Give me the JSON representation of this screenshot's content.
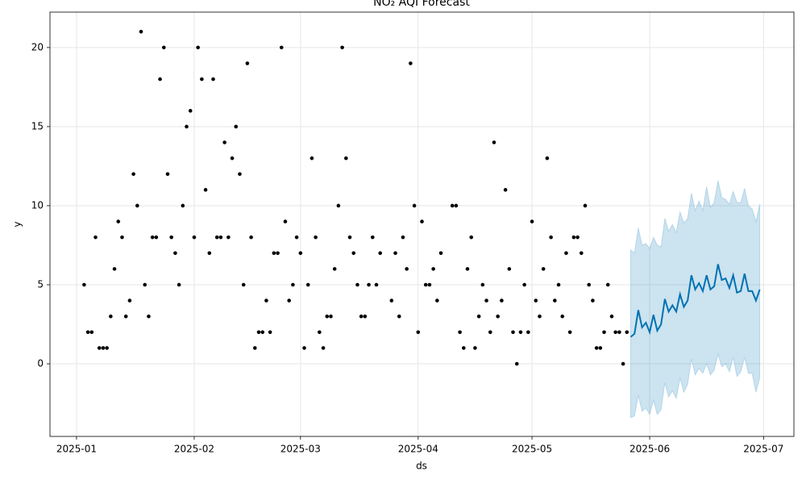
{
  "chart_data": {
    "type": "forecast",
    "title": "NO₂ AQI Forecast",
    "x_label": "ds",
    "y_label": "y",
    "xlim": [
      -7,
      189
    ],
    "ylim": [
      -4.59,
      22.24
    ],
    "xticks": [
      {
        "value": 0,
        "label": "2025-01"
      },
      {
        "value": 31,
        "label": "2025-02"
      },
      {
        "value": 59,
        "label": "2025-03"
      },
      {
        "value": 90,
        "label": "2025-04"
      },
      {
        "value": 120,
        "label": "2025-05"
      },
      {
        "value": 151,
        "label": "2025-06"
      },
      {
        "value": 181,
        "label": "2025-07"
      }
    ],
    "yticks": [
      0,
      5,
      10,
      15,
      20
    ],
    "grid": true,
    "observed": {
      "color": "#000000",
      "x": [
        2,
        3,
        4,
        5,
        6,
        7,
        8,
        9,
        10,
        11,
        12,
        13,
        14,
        15,
        16,
        17,
        18,
        19,
        20,
        21,
        22,
        23,
        24,
        25,
        26,
        27,
        28,
        29,
        30,
        31,
        32,
        33,
        34,
        35,
        36,
        37,
        38,
        39,
        40,
        41,
        42,
        43,
        44,
        45,
        46,
        47,
        48,
        49,
        50,
        51,
        52,
        53,
        54,
        55,
        56,
        57,
        58,
        59,
        60,
        61,
        62,
        63,
        64,
        65,
        66,
        67,
        68,
        69,
        70,
        71,
        72,
        73,
        74,
        75,
        76,
        77,
        78,
        79,
        80,
        83,
        84,
        85,
        86,
        87,
        88,
        89,
        90,
        91,
        92,
        93,
        94,
        95,
        96,
        99,
        100,
        101,
        102,
        103,
        104,
        105,
        106,
        107,
        108,
        109,
        110,
        111,
        112,
        113,
        114,
        115,
        116,
        117,
        118,
        119,
        120,
        121,
        122,
        123,
        124,
        125,
        126,
        127,
        128,
        129,
        130,
        131,
        132,
        133,
        134,
        135,
        136,
        137,
        138,
        139,
        140,
        141,
        142,
        143,
        144,
        145
      ],
      "values": [
        5,
        2,
        2,
        8,
        1,
        1,
        1,
        3,
        6,
        9,
        8,
        3,
        4,
        12,
        10,
        21,
        5,
        3,
        8,
        8,
        18,
        20,
        12,
        8,
        7,
        5,
        10,
        15,
        16,
        8,
        20,
        18,
        11,
        7,
        18,
        8,
        8,
        14,
        8,
        13,
        15,
        12,
        5,
        19,
        8,
        1,
        2,
        2,
        4,
        2,
        7,
        7,
        20,
        9,
        4,
        5,
        8,
        7,
        1,
        5,
        13,
        8,
        2,
        1,
        3,
        3,
        6,
        10,
        20,
        13,
        8,
        7,
        5,
        3,
        3,
        5,
        8,
        5,
        7,
        4,
        7,
        3,
        8,
        6,
        19,
        10,
        2,
        9,
        5,
        5,
        6,
        4,
        7,
        10,
        10,
        2,
        1,
        6,
        8,
        1,
        3,
        5,
        4,
        2,
        14,
        3,
        4,
        11,
        6,
        2,
        0,
        2,
        5,
        2,
        9,
        4,
        3,
        6,
        13,
        8,
        4,
        5,
        3,
        7,
        2,
        8,
        8,
        7,
        10,
        5,
        4,
        1,
        1,
        2,
        5,
        3,
        2,
        2,
        0,
        2
      ]
    },
    "forecast": {
      "color": "#0072b2",
      "x": [
        146,
        147,
        148,
        149,
        150,
        151,
        152,
        153,
        154,
        155,
        156,
        157,
        158,
        159,
        160,
        161,
        162,
        163,
        164,
        165,
        166,
        167,
        168,
        169,
        170,
        171,
        172,
        173,
        174,
        175,
        176,
        177,
        178,
        179,
        180
      ],
      "values": [
        1.7,
        1.9,
        3.4,
        2.3,
        2.6,
        2.0,
        3.1,
        2.1,
        2.5,
        4.1,
        3.3,
        3.7,
        3.3,
        4.4,
        3.6,
        4.0,
        5.6,
        4.7,
        5.1,
        4.6,
        5.6,
        4.7,
        4.9,
        6.3,
        5.3,
        5.4,
        4.8,
        5.6,
        4.5,
        4.6,
        5.7,
        4.6,
        4.6,
        4.0,
        4.7
      ],
      "upper": [
        7.2,
        7.0,
        8.6,
        7.5,
        7.6,
        7.3,
        8.0,
        7.5,
        7.4,
        9.2,
        8.4,
        8.8,
        8.3,
        9.6,
        8.9,
        9.2,
        10.8,
        9.7,
        10.3,
        9.7,
        11.2,
        9.9,
        10.2,
        11.6,
        10.5,
        10.4,
        10.1,
        10.9,
        10.2,
        10.2,
        11.1,
        10.0,
        9.8,
        9.0,
        10.1
      ],
      "lower": [
        -3.4,
        -3.3,
        -2.0,
        -3.0,
        -2.8,
        -3.2,
        -2.3,
        -3.2,
        -2.9,
        -1.2,
        -2.1,
        -1.7,
        -2.2,
        -0.9,
        -1.8,
        -1.3,
        0.3,
        -0.7,
        -0.3,
        -0.6,
        0.0,
        -0.7,
        -0.4,
        0.6,
        -0.2,
        0.0,
        -0.5,
        0.4,
        -0.8,
        -0.5,
        0.4,
        -0.6,
        -0.6,
        -1.8,
        -0.9
      ]
    }
  }
}
